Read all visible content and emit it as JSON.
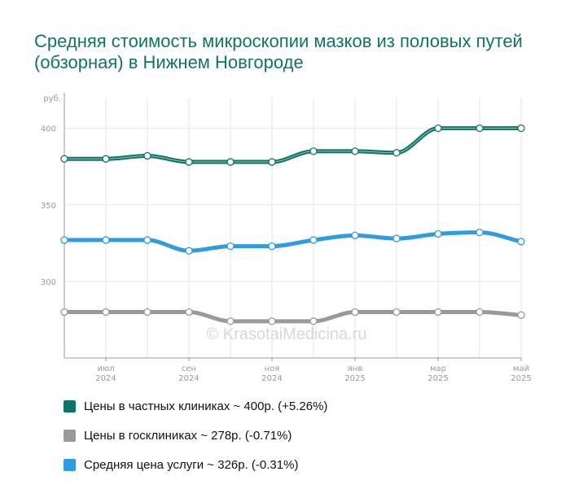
{
  "title": "Средняя стоимость микроскопии мазков из половых путей (обзорная) в Нижнем Новгороде",
  "watermark": "© KrasotaiMedicina.ru",
  "chart_data": {
    "type": "line",
    "ylabel": "руб.",
    "ylim": [
      250,
      420
    ],
    "yticks": [
      300,
      350,
      400
    ],
    "x": [
      "2024-06",
      "2024-07",
      "2024-08",
      "2024-09",
      "2024-10",
      "2024-11",
      "2024-12",
      "2025-01",
      "2025-02",
      "2025-03",
      "2025-04",
      "2025-05"
    ],
    "x_tick_labels": [
      {
        "month": "июл",
        "year": "2024",
        "index": 1
      },
      {
        "month": "сен",
        "year": "2024",
        "index": 3
      },
      {
        "month": "ноя",
        "year": "2024",
        "index": 5
      },
      {
        "month": "янв",
        "year": "2025",
        "index": 7
      },
      {
        "month": "мар",
        "year": "2025",
        "index": 9
      },
      {
        "month": "май",
        "year": "2025",
        "index": 11
      }
    ],
    "grid": true,
    "legend_position": "bottom",
    "series": [
      {
        "name": "Цены в частных клиниках",
        "color": "#0e7566",
        "values": [
          380,
          380,
          382,
          378,
          378,
          378,
          385,
          385,
          384,
          400,
          400,
          400
        ]
      },
      {
        "name": "Средняя цена услуги",
        "color": "#2f9be0",
        "values": [
          327,
          327,
          327,
          320,
          323,
          323,
          327,
          330,
          328,
          331,
          332,
          326
        ]
      },
      {
        "name": "Цены в госклиниках",
        "color": "#999999",
        "values": [
          280,
          280,
          280,
          280,
          274,
          274,
          274,
          280,
          280,
          280,
          280,
          278
        ]
      }
    ]
  },
  "legend": [
    {
      "label": "Цены в частных клиниках ~ 400р. (+5.26%)",
      "color": "#0e7566"
    },
    {
      "label": "Цены в госклиниках ~ 278р. (-0.71%)",
      "color": "#999999"
    },
    {
      "label": "Средняя цена услуги ~ 326р. (-0.31%)",
      "color": "#2f9be0"
    }
  ]
}
